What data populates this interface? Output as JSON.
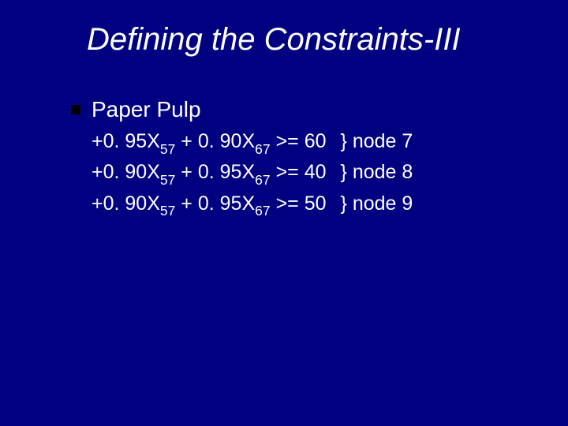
{
  "background_color": "#000080",
  "text_color": "#ffffff",
  "bullet_color": "#000000",
  "title": "Defining the Constraints-III",
  "title_fontsize": 40,
  "title_italic": true,
  "section_label": "Paper Pulp",
  "section_label_fontsize": 28,
  "constraint_fontsize": 25,
  "constraints": [
    {
      "coef1": "+0. 95",
      "var1": "X",
      "sub1": "57",
      "op_mid": " + ",
      "coef2": "0. 90",
      "var2": "X",
      "sub2": "67",
      "op": " >= ",
      "rhs": "60",
      "comment": "} node 7"
    },
    {
      "coef1": "+0. 90",
      "var1": "X",
      "sub1": "57",
      "op_mid": " + ",
      "coef2": "0. 95",
      "var2": "X",
      "sub2": "67",
      "op": " >= ",
      "rhs": "40",
      "comment": "} node 8"
    },
    {
      "coef1": "+0. 90",
      "var1": "X",
      "sub1": "57",
      "op_mid": " + ",
      "coef2": "0. 95",
      "var2": "X",
      "sub2": "67",
      "op": " >= ",
      "rhs": "50",
      "comment": "} node 9"
    }
  ]
}
